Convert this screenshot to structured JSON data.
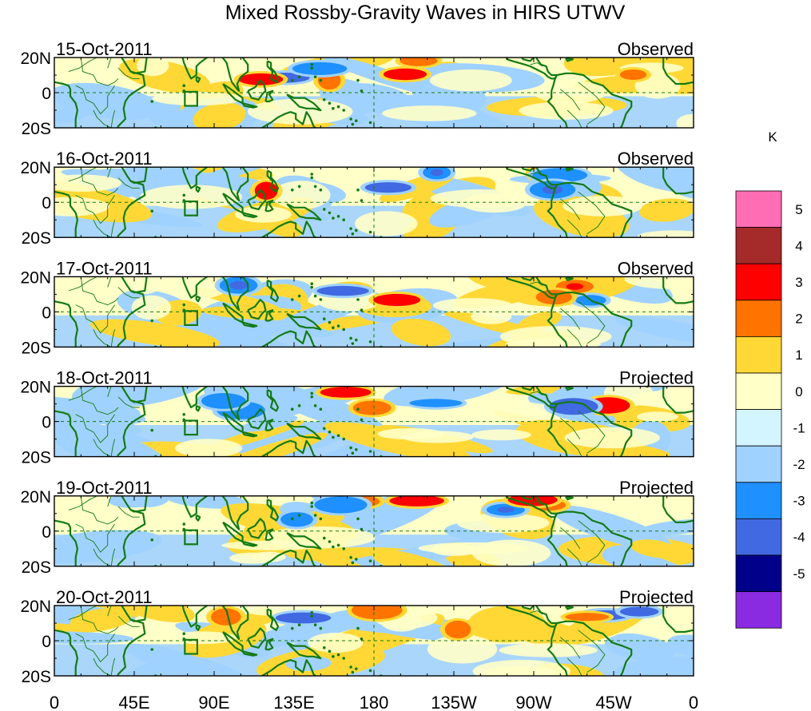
{
  "title": "Mixed Rossby-Gravity Waves in HIRS UTWV",
  "panels": [
    {
      "date": "15-Oct-2011",
      "type": "Observed"
    },
    {
      "date": "16-Oct-2011",
      "type": "Observed"
    },
    {
      "date": "17-Oct-2011",
      "type": "Observed"
    },
    {
      "date": "18-Oct-2011",
      "type": "Projected"
    },
    {
      "date": "19-Oct-2011",
      "type": "Projected"
    },
    {
      "date": "20-Oct-2011",
      "type": "Projected"
    }
  ],
  "lat_labels": [
    "20N",
    "0",
    "20S"
  ],
  "lon_labels": [
    "0",
    "45E",
    "90E",
    "135E",
    "180",
    "135W",
    "90W",
    "45W",
    "0"
  ],
  "colorbar": {
    "unit": "K",
    "tick_labels": [
      "5",
      "4",
      "3",
      "2",
      "1",
      "0",
      "-1",
      "-2",
      "-3",
      "-4",
      "-5"
    ],
    "colors_top_to_bottom": [
      "#ff6eb4",
      "#a52a2a",
      "#ff0000",
      "#ff7300",
      "#ffd835",
      "#ffffc8",
      "#d2f5ff",
      "#a0d2ff",
      "#1e90ff",
      "#4169e1",
      "#00008b",
      "#8a2be2"
    ]
  },
  "colors": {
    "coast": "#137a13",
    "frame": "#000000",
    "gridline": "#137a13",
    "background_field": "#ffffc8"
  }
}
